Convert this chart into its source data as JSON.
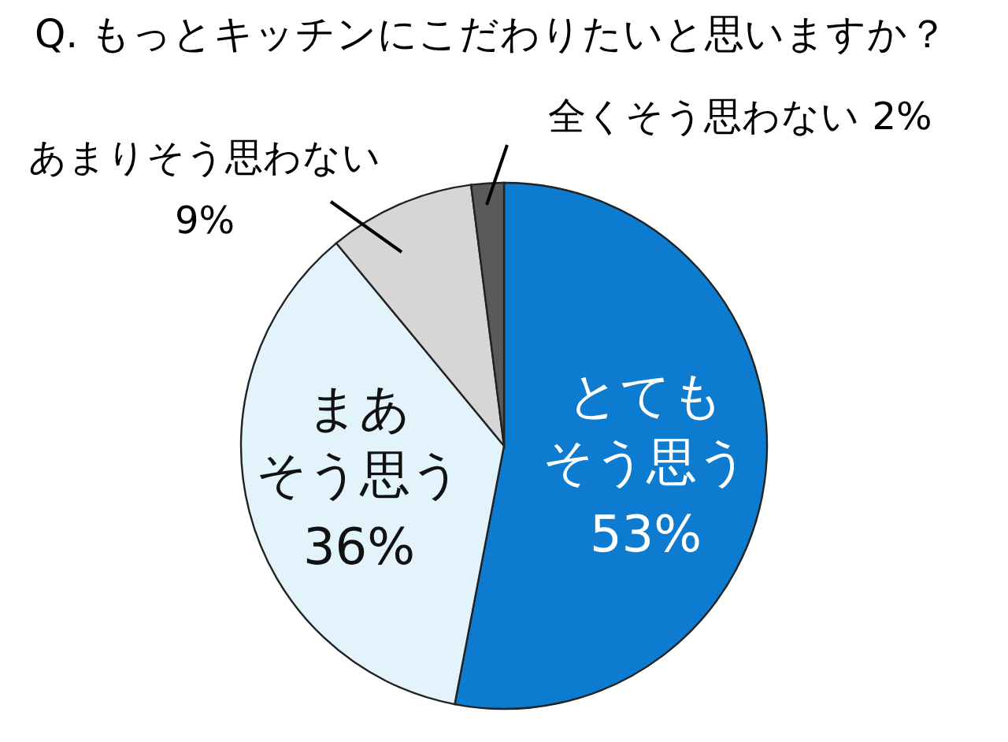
{
  "chart_data": {
    "type": "pie",
    "title": "Q. もっとキッチンにこだわりたいと思いますか？",
    "categories": [
      "とてもそう思う",
      "まあそう思う",
      "あまりそう思わない",
      "全くそう思わない"
    ],
    "values": [
      53,
      36,
      9,
      2
    ],
    "value_labels": [
      "53%",
      "36%",
      "9%",
      "2%"
    ],
    "colors": [
      "#0c7bd0",
      "#e3f3fc",
      "#d6d6d6",
      "#5a5a5a"
    ]
  }
}
